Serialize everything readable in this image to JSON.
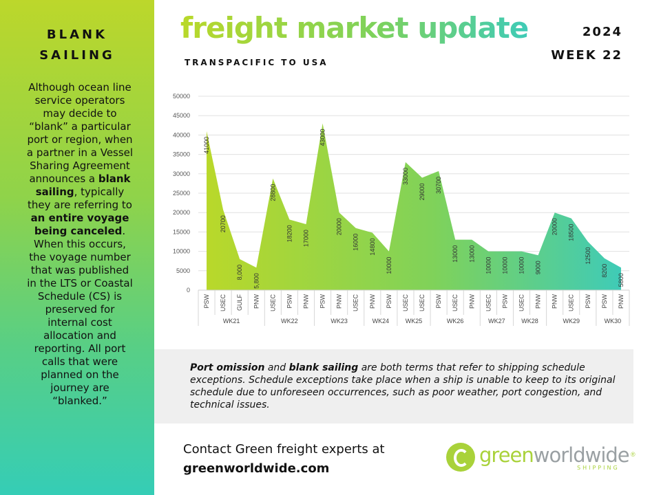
{
  "sidebar": {
    "title_line1": "BLANK",
    "title_line2": "SAILING",
    "body": [
      {
        "t": "Although ocean line service operators may decide to “blank” a particular port or region, when a partner in a Vessel Sharing Agreement announces a ",
        "b": false
      },
      {
        "t": "blank sailing",
        "b": true
      },
      {
        "t": ", typically they are referring to ",
        "b": false
      },
      {
        "t": "an entire voyage being canceled",
        "b": true
      },
      {
        "t": ". When this occurs, the voyage number that was published in the LTS or Coastal Schedule (CS) is preserved for internal cost allocation and reporting. All port calls that were planned on the journey are “blanked.”",
        "b": false
      }
    ]
  },
  "header": {
    "title": "freight market update",
    "subtitle": "TRANSPACIFIC TO USA",
    "year": "2024",
    "week": "WEEK 22"
  },
  "colors": {
    "accent_start": "#b9d82a",
    "accent_mid": "#7fd25a",
    "accent_end": "#3fcbb7",
    "note_bg": "#efefef"
  },
  "chart_data": {
    "type": "area",
    "title": "",
    "xlabel": "",
    "ylabel": "",
    "ylim": [
      0,
      50000
    ],
    "yticks": [
      "0",
      "5000",
      "10000",
      "15000",
      "20000",
      "25000",
      "30000",
      "35000",
      "40000",
      "45000",
      "50000"
    ],
    "grid": true,
    "legend": "none",
    "categories": [
      "PSW",
      "USEC",
      "GULF",
      "PNW",
      "USEC",
      "PSW",
      "PNW",
      "PSW",
      "PNW",
      "USEC",
      "PNW",
      "PSW",
      "USEC",
      "USEC",
      "PSW",
      "USEC",
      "PNW",
      "USEC",
      "PSW",
      "USEC",
      "PNW",
      "PNW",
      "USEC",
      "PSW",
      "PSW",
      "PNW"
    ],
    "values": [
      41000,
      20700,
      8000,
      5800,
      28800,
      18200,
      17000,
      43000,
      20000,
      16000,
      14800,
      10000,
      33000,
      29000,
      30700,
      13000,
      13000,
      10000,
      10000,
      10000,
      9000,
      20000,
      18500,
      12500,
      8200,
      5800
    ],
    "value_labels": [
      "41000",
      "20700",
      "8,000",
      "5,800",
      "28800",
      "18200",
      "17000",
      "43000",
      "20000",
      "16000",
      "14800",
      "10000",
      "33000",
      "29000",
      "30700",
      "13000",
      "13000",
      "10000",
      "10000",
      "10000",
      "9000",
      "20000",
      "18500",
      "12500",
      "8200",
      "5800"
    ],
    "groups": [
      {
        "label": "WK21",
        "count": 4
      },
      {
        "label": "WK22",
        "count": 3
      },
      {
        "label": "WK23",
        "count": 3
      },
      {
        "label": "WK24",
        "count": 2
      },
      {
        "label": "WK25",
        "count": 2
      },
      {
        "label": "WK26",
        "count": 3
      },
      {
        "label": "WK27",
        "count": 2
      },
      {
        "label": "WK28",
        "count": 2
      },
      {
        "label": "WK29",
        "count": 3
      },
      {
        "label": "WK30",
        "count": 2
      }
    ]
  },
  "note": [
    {
      "t": "Port omission",
      "b": true
    },
    {
      "t": " and ",
      "b": false
    },
    {
      "t": "blank sailing",
      "b": true
    },
    {
      "t": " are both terms that refer to shipping schedule exceptions. Schedule exceptions take place when a ship is unable to keep to its original schedule due to unforeseen occurrences, such as poor weather, port congestion, and technical issues.",
      "b": false
    }
  ],
  "contact": {
    "line1": "Contact Green freight experts at",
    "url": "greenworldwide.com"
  },
  "logo": {
    "word1": "green",
    "word2": "worldwide",
    "tagline": "SHIPPING",
    "reg": "®"
  }
}
